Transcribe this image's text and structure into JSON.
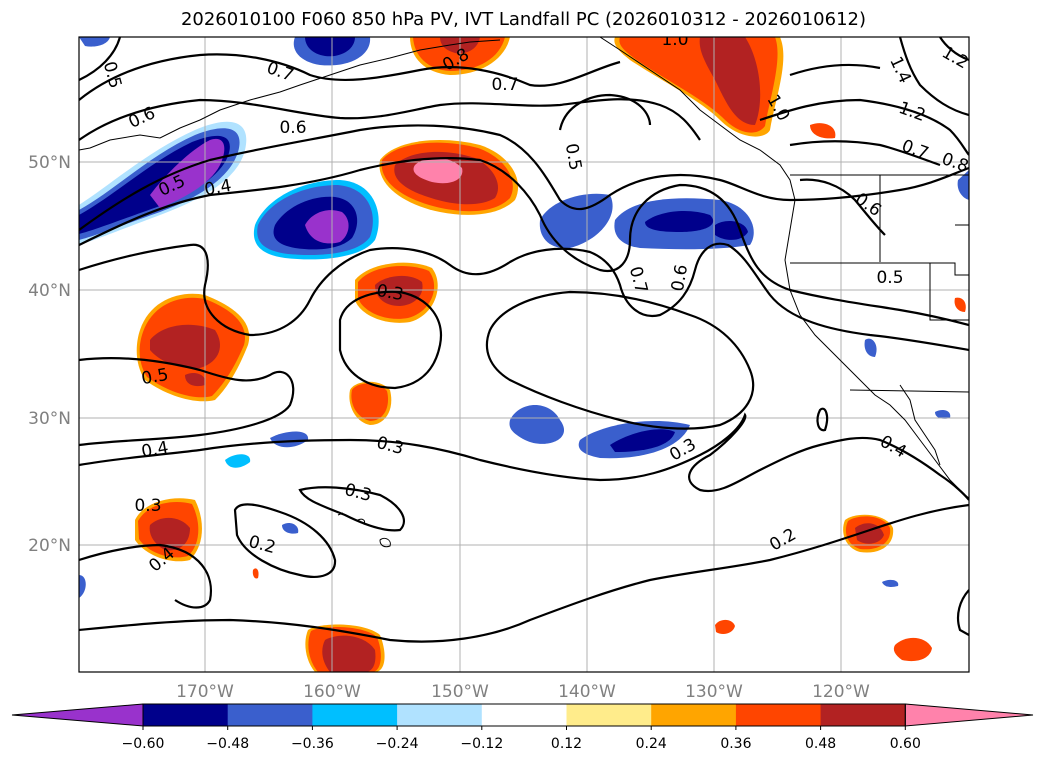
{
  "title": "2026010100 F060 850 hPa PV, IVT Landfall PC (2026010312 - 2026010612)",
  "lon_labels": [
    "170°W",
    "160°W",
    "150°W",
    "140°W",
    "130°W",
    "120°W"
  ],
  "lat_labels": [
    "50°N",
    "40°N",
    "30°N",
    "20°N"
  ],
  "contour_labels": [
    "0.5",
    "0.6",
    "0.7",
    "0.8",
    "1.0",
    "1.2",
    "1.4",
    "1.2",
    "0.6",
    "0.4",
    "0.5",
    "0.5",
    "0.7",
    "0.8",
    "0.3",
    "0.6",
    "0.5",
    "0.4",
    "0.3",
    "0.3",
    "0.3",
    "0.4",
    "0.2",
    "0.4",
    "0.2",
    "0.3",
    "0.5"
  ],
  "colorbar": {
    "colors": [
      "#9932cc",
      "#00008b",
      "#3a5fcd",
      "#00bfff",
      "#b0e2ff",
      "#ffffff",
      "#ffec8b",
      "#ffa500",
      "#ff4500",
      "#b22222",
      "#ff82ab"
    ],
    "tick_labels": [
      "-0.60",
      "-0.48",
      "-0.36",
      "-0.24",
      "-0.12",
      "0.12",
      "0.24",
      "0.36",
      "0.48",
      "0.60"
    ]
  },
  "colors": {
    "land_border": "#000000",
    "grid": "#b0b0b0",
    "contour": "#000000"
  }
}
